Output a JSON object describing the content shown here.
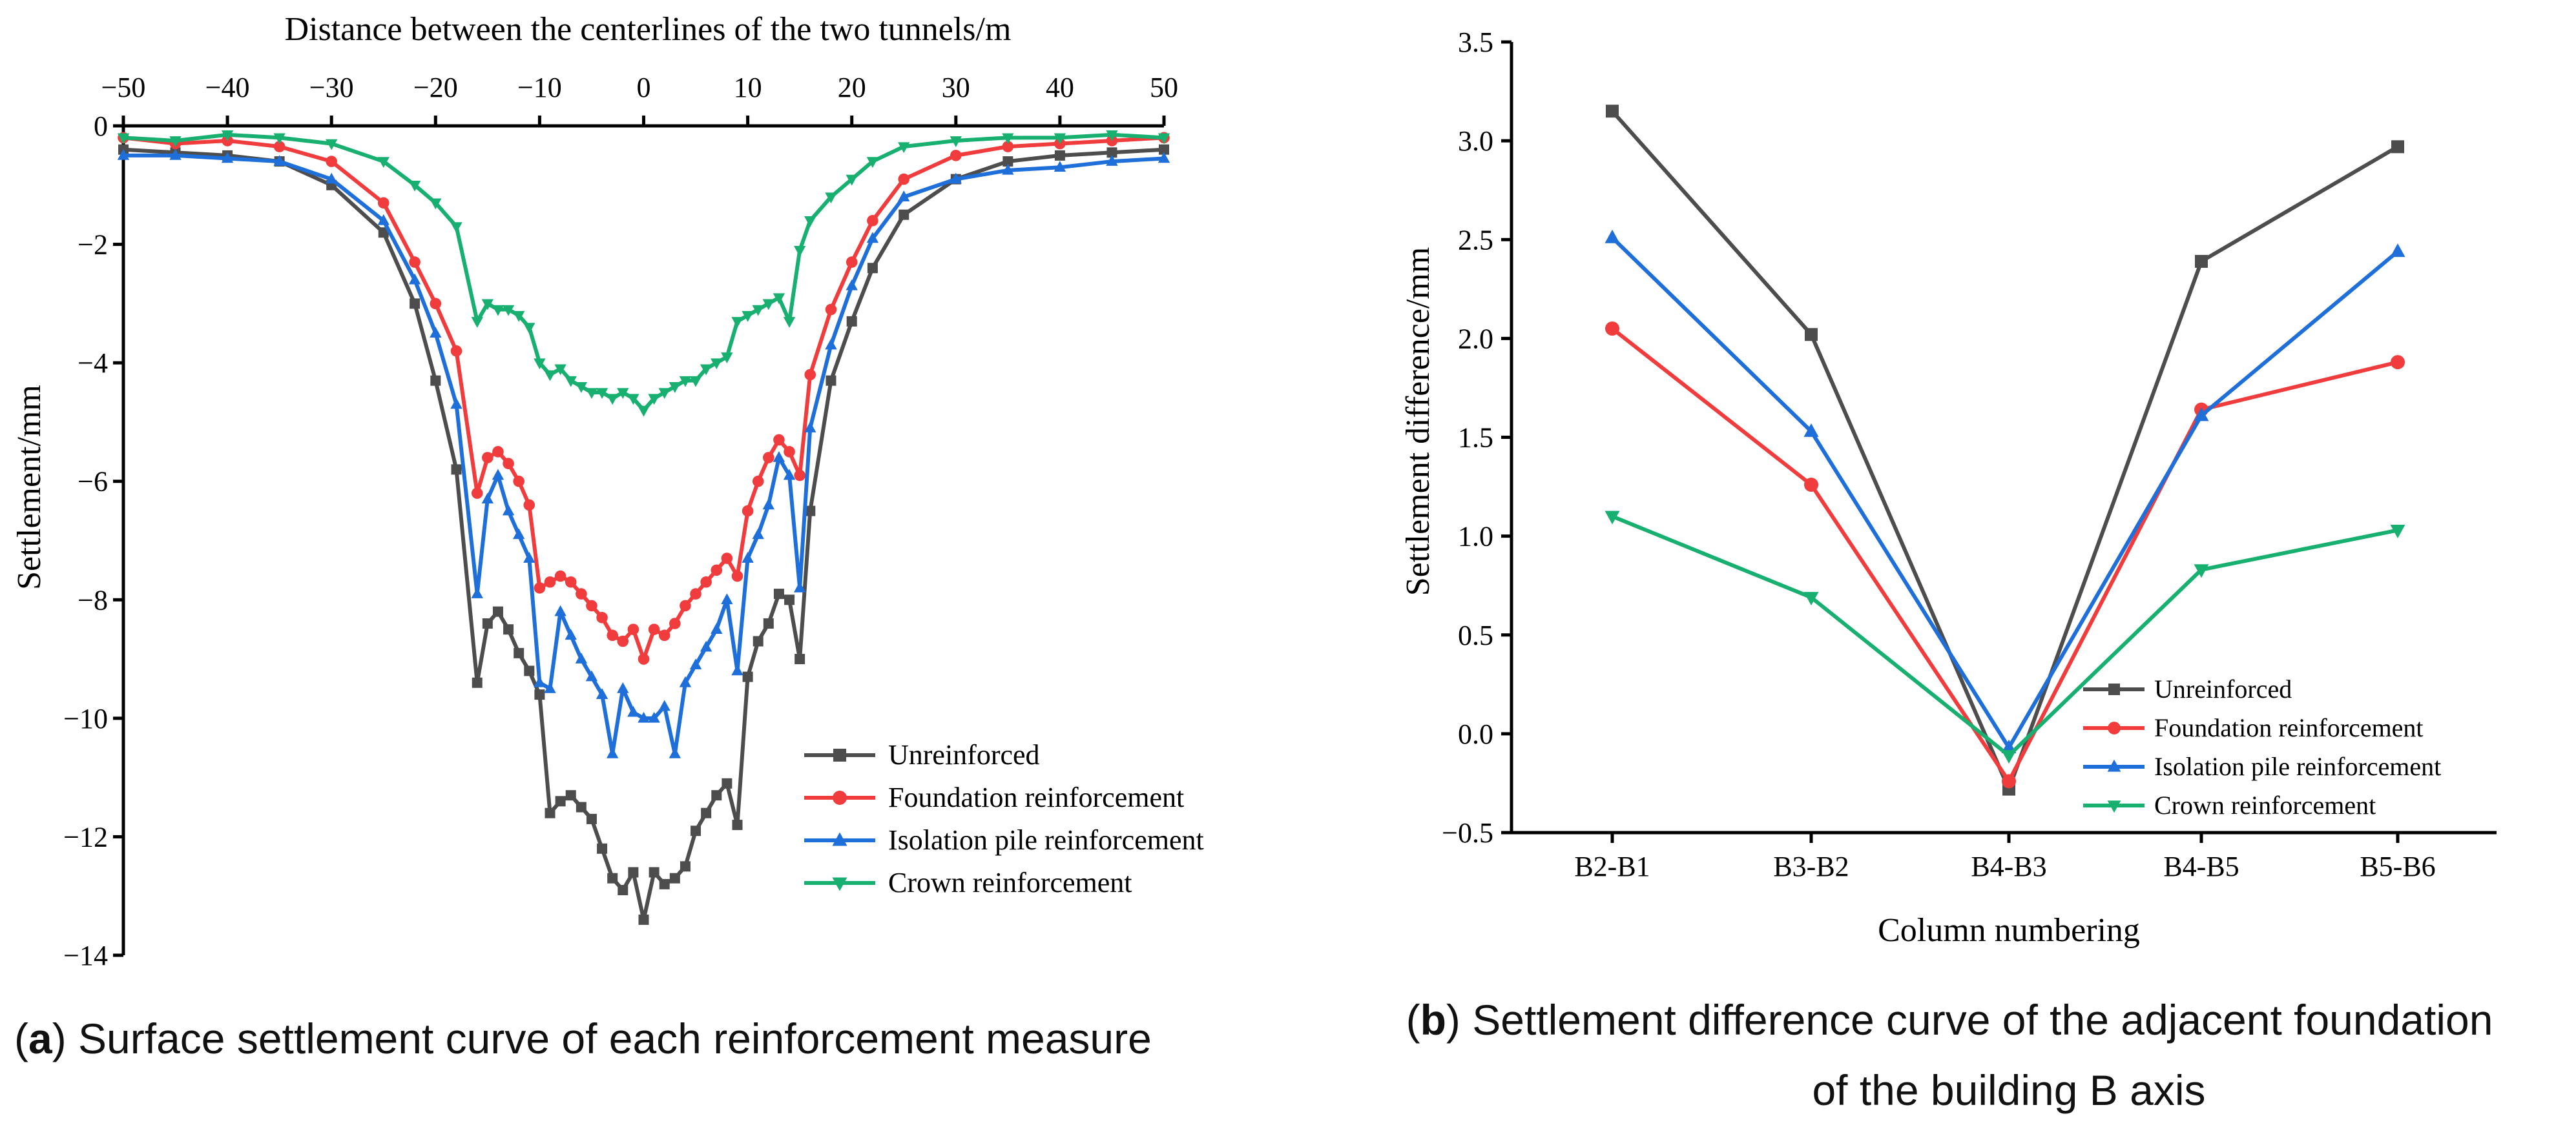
{
  "chart_data": [
    {
      "type": "line",
      "panel": "a",
      "caption_letter": "a",
      "caption_text": "Surface settlement curve of each reinforcement measure",
      "xlabel": "Distance between the centerlines of the two tunnels/m",
      "ylabel": "Settlement/mm",
      "xlim": [
        -50,
        50
      ],
      "ylim": [
        -14,
        0
      ],
      "xticks": [
        -50,
        -40,
        -30,
        -20,
        -10,
        0,
        10,
        20,
        30,
        40,
        50
      ],
      "yticks": [
        0,
        -2,
        -4,
        -6,
        -8,
        -10,
        -12,
        -14
      ],
      "legend_position": "bottom-right",
      "x": [
        -50,
        -45,
        -40,
        -35,
        -30,
        -25,
        -22,
        -20,
        -18,
        -16,
        -15,
        -14,
        -13,
        -12,
        -11,
        -10,
        -9,
        -8,
        -7,
        -6,
        -5,
        -4,
        -3,
        -2,
        -1,
        0,
        1,
        2,
        3,
        4,
        5,
        6,
        7,
        8,
        9,
        10,
        11,
        12,
        13,
        14,
        15,
        16,
        18,
        20,
        22,
        25,
        30,
        35,
        40,
        45,
        50
      ],
      "series": [
        {
          "name": "Unreinforced",
          "color": "#4d4d4d",
          "marker": "square",
          "values": [
            -0.4,
            -0.45,
            -0.5,
            -0.6,
            -1.0,
            -1.8,
            -3.0,
            -4.3,
            -5.8,
            -9.4,
            -8.4,
            -8.2,
            -8.5,
            -8.9,
            -9.2,
            -9.6,
            -11.6,
            -11.4,
            -11.3,
            -11.5,
            -11.7,
            -12.2,
            -12.7,
            -12.9,
            -12.6,
            -13.4,
            -12.6,
            -12.8,
            -12.7,
            -12.5,
            -11.9,
            -11.6,
            -11.3,
            -11.1,
            -11.8,
            -9.3,
            -8.7,
            -8.4,
            -7.9,
            -8.0,
            -9.0,
            -6.5,
            -4.3,
            -3.3,
            -2.4,
            -1.5,
            -0.9,
            -0.6,
            -0.5,
            -0.45,
            -0.4
          ]
        },
        {
          "name": "Foundation reinforcement",
          "color": "#f03c3c",
          "marker": "circle",
          "values": [
            -0.2,
            -0.3,
            -0.25,
            -0.35,
            -0.6,
            -1.3,
            -2.3,
            -3.0,
            -3.8,
            -6.2,
            -5.6,
            -5.5,
            -5.7,
            -6.0,
            -6.4,
            -7.8,
            -7.7,
            -7.6,
            -7.7,
            -7.9,
            -8.1,
            -8.3,
            -8.6,
            -8.7,
            -8.5,
            -9.0,
            -8.5,
            -8.6,
            -8.4,
            -8.1,
            -7.9,
            -7.7,
            -7.5,
            -7.3,
            -7.6,
            -6.5,
            -6.0,
            -5.6,
            -5.3,
            -5.5,
            -5.9,
            -4.2,
            -3.1,
            -2.3,
            -1.6,
            -0.9,
            -0.5,
            -0.35,
            -0.3,
            -0.25,
            -0.2
          ]
        },
        {
          "name": "Isolation pile reinforcement",
          "color": "#1e6fd9",
          "marker": "triangle-up",
          "values": [
            -0.5,
            -0.5,
            -0.55,
            -0.6,
            -0.9,
            -1.6,
            -2.6,
            -3.5,
            -4.7,
            -7.9,
            -6.3,
            -5.9,
            -6.5,
            -6.9,
            -7.3,
            -9.4,
            -9.5,
            -8.2,
            -8.6,
            -9.0,
            -9.3,
            -9.6,
            -10.6,
            -9.5,
            -9.9,
            -10.0,
            -10.0,
            -9.8,
            -10.6,
            -9.4,
            -9.1,
            -8.8,
            -8.5,
            -8.0,
            -9.2,
            -7.3,
            -6.9,
            -6.4,
            -5.6,
            -5.9,
            -7.8,
            -5.1,
            -3.7,
            -2.7,
            -1.9,
            -1.2,
            -0.9,
            -0.75,
            -0.7,
            -0.6,
            -0.55
          ]
        },
        {
          "name": "Crown reinforcement",
          "color": "#17b070",
          "marker": "triangle-down",
          "values": [
            -0.2,
            -0.25,
            -0.15,
            -0.2,
            -0.3,
            -0.6,
            -1.0,
            -1.3,
            -1.7,
            -3.3,
            -3.0,
            -3.1,
            -3.1,
            -3.2,
            -3.4,
            -4.0,
            -4.2,
            -4.1,
            -4.3,
            -4.4,
            -4.5,
            -4.5,
            -4.6,
            -4.5,
            -4.6,
            -4.8,
            -4.6,
            -4.5,
            -4.4,
            -4.3,
            -4.3,
            -4.1,
            -4.0,
            -3.9,
            -3.3,
            -3.2,
            -3.1,
            -3.0,
            -2.9,
            -3.3,
            -2.1,
            -1.6,
            -1.2,
            -0.9,
            -0.6,
            -0.35,
            -0.25,
            -0.2,
            -0.2,
            -0.15,
            -0.2
          ]
        }
      ]
    },
    {
      "type": "line",
      "panel": "b",
      "caption_letter": "b",
      "caption_line1": "Settlement difference curve of the adjacent foundation",
      "caption_line2": "of the building B axis",
      "xlabel": "Column numbering",
      "ylabel": "Settlement difference/mm",
      "categories": [
        "B2-B1",
        "B3-B2",
        "B4-B3",
        "B4-B5",
        "B5-B6"
      ],
      "ylim": [
        -0.5,
        3.5
      ],
      "yticks": [
        3.5,
        3.0,
        2.5,
        2.0,
        1.5,
        1.0,
        0.5,
        0.0,
        -0.5
      ],
      "legend_position": "bottom-right",
      "series": [
        {
          "name": "Unreinforced",
          "color": "#4d4d4d",
          "marker": "square",
          "values": [
            3.15,
            2.02,
            -0.28,
            2.39,
            2.97
          ]
        },
        {
          "name": "Foundation reinforcement",
          "color": "#f03c3c",
          "marker": "circle",
          "values": [
            2.05,
            1.26,
            -0.24,
            1.64,
            1.88
          ]
        },
        {
          "name": "Isolation pile reinforcement",
          "color": "#1e6fd9",
          "marker": "triangle-up",
          "values": [
            2.51,
            1.53,
            -0.07,
            1.61,
            2.44
          ]
        },
        {
          "name": "Crown reinforcement",
          "color": "#17b070",
          "marker": "triangle-down",
          "values": [
            1.1,
            0.69,
            -0.11,
            0.83,
            1.03
          ]
        }
      ]
    }
  ]
}
